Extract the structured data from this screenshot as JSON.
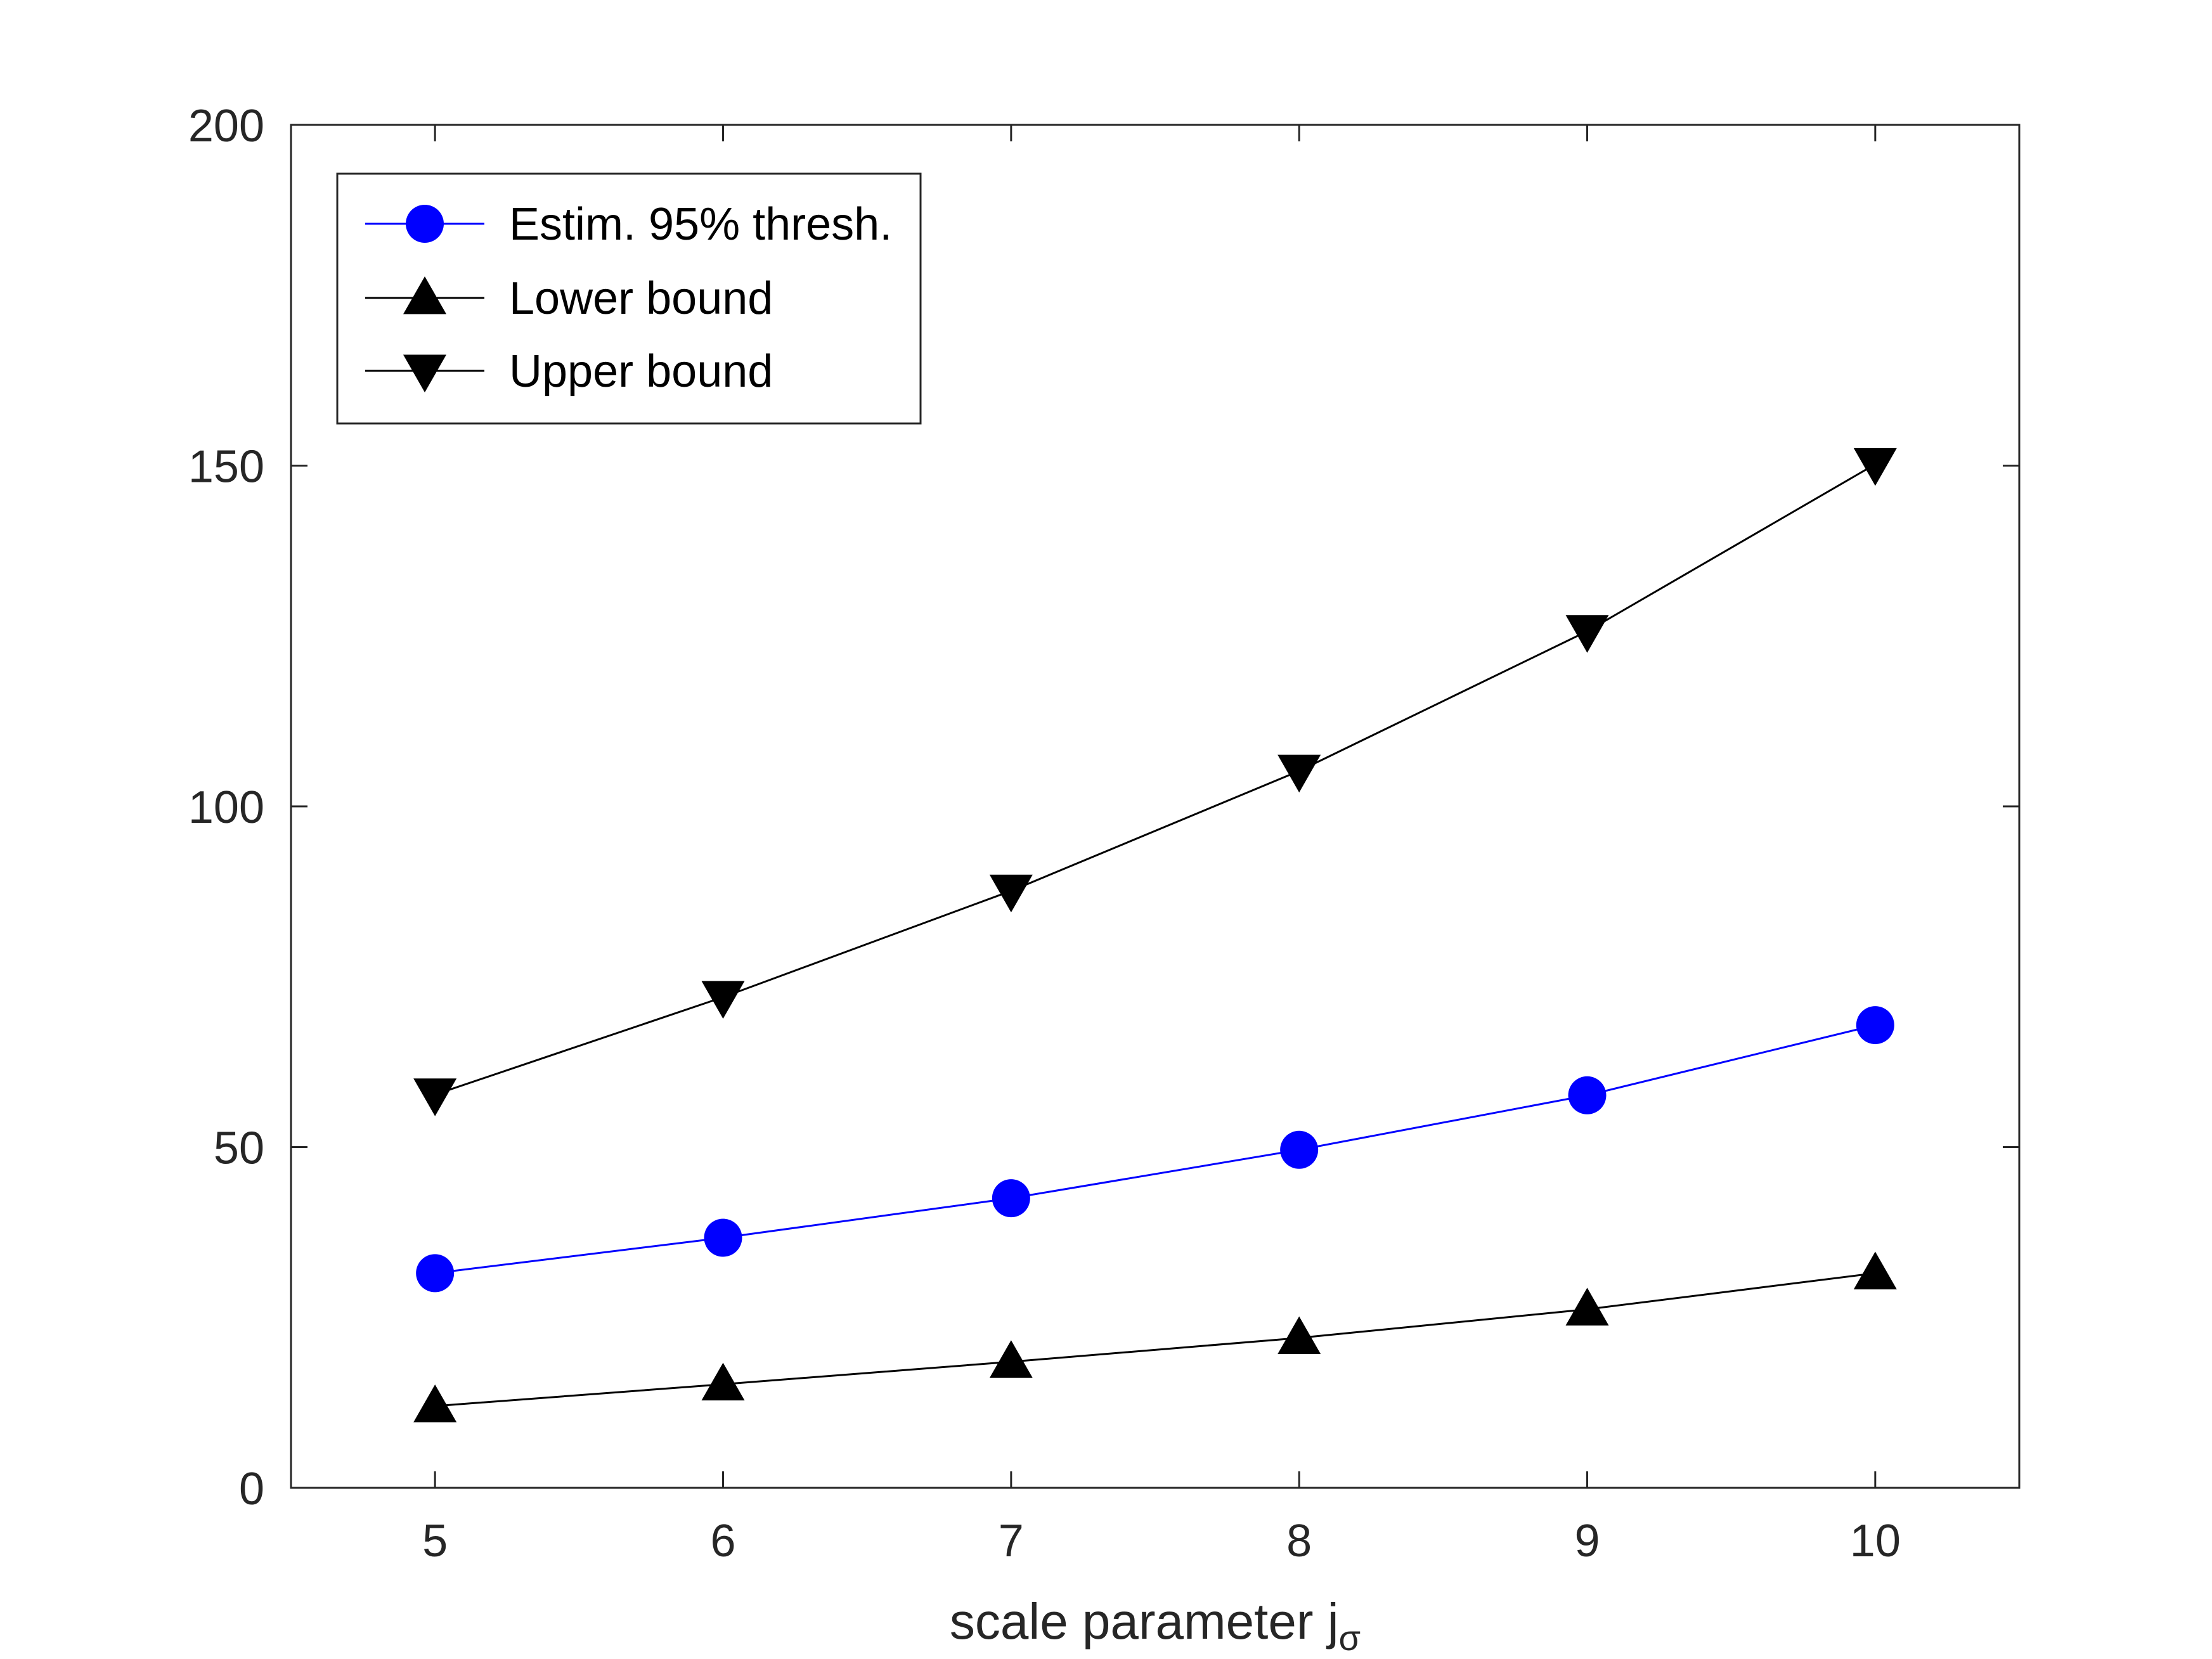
{
  "chart_data": {
    "type": "line",
    "xlabel": "scale parameter j",
    "xlabel_subscript": "σ",
    "ylabel": "",
    "title": "",
    "xlim": [
      4.5,
      10.5
    ],
    "ylim": [
      0,
      200
    ],
    "xticks": [
      5,
      6,
      7,
      8,
      9,
      10
    ],
    "yticks": [
      0,
      50,
      100,
      150,
      200
    ],
    "grid": false,
    "legend_position": "top-left",
    "series": [
      {
        "name": "Estim. 95% thresh.",
        "color": "#0000ff",
        "marker": "circle",
        "x": [
          5,
          6,
          7,
          8,
          9,
          10
        ],
        "y": [
          31.5,
          36.7,
          42.5,
          49.6,
          57.6,
          67.9
        ]
      },
      {
        "name": "Lower bound",
        "color": "#000000",
        "marker": "triangle-up",
        "x": [
          5,
          6,
          7,
          8,
          9,
          10
        ],
        "y": [
          12.0,
          15.2,
          18.5,
          22.0,
          26.2,
          31.5
        ]
      },
      {
        "name": "Upper bound",
        "color": "#000000",
        "marker": "triangle-down",
        "x": [
          5,
          6,
          7,
          8,
          9,
          10
        ],
        "y": [
          57.7,
          72.0,
          87.6,
          105.2,
          125.7,
          150.2
        ]
      }
    ]
  }
}
